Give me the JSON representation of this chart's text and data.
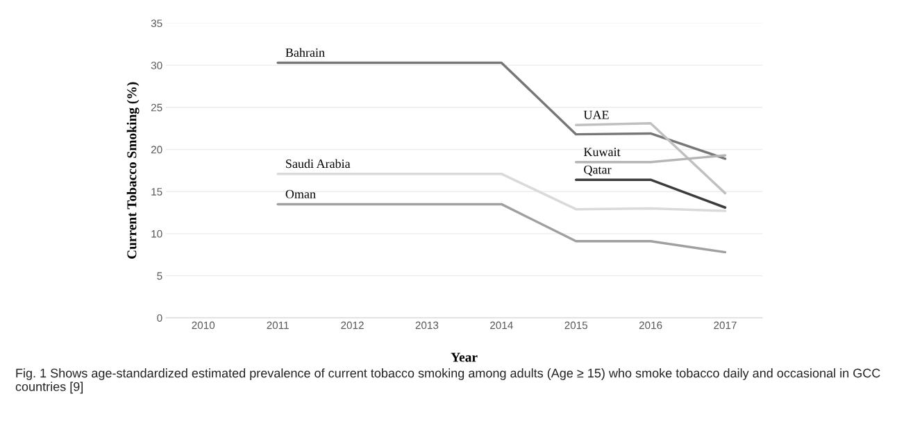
{
  "chart_data": {
    "type": "line",
    "categories": [
      "2010",
      "2011",
      "2012",
      "2013",
      "2014",
      "2015",
      "2016",
      "2017"
    ],
    "xlabel": "Year",
    "ylabel": "Current Tobacco Smoking (%)",
    "ylim": [
      0,
      35
    ],
    "yticks": [
      0,
      5,
      10,
      15,
      20,
      25,
      30,
      35
    ],
    "grid": "y",
    "legend": false,
    "series": [
      {
        "name": "Bahrain",
        "color": "#777777",
        "values": [
          null,
          30.3,
          30.3,
          30.3,
          30.3,
          21.8,
          21.9,
          18.9
        ]
      },
      {
        "name": "Saudi Arabia",
        "color": "#dadada",
        "values": [
          null,
          17.1,
          17.1,
          17.1,
          17.1,
          12.9,
          13.0,
          12.7
        ]
      },
      {
        "name": "Oman",
        "color": "#a0a0a0",
        "values": [
          null,
          13.5,
          13.5,
          13.5,
          13.5,
          9.1,
          9.1,
          7.8
        ]
      },
      {
        "name": "UAE",
        "color": "#c0c0c0",
        "values": [
          null,
          null,
          null,
          null,
          null,
          22.9,
          23.1,
          14.8
        ]
      },
      {
        "name": "Kuwait",
        "color": "#b5b5b5",
        "values": [
          null,
          null,
          null,
          null,
          null,
          18.5,
          18.5,
          19.3
        ]
      },
      {
        "name": "Qatar",
        "color": "#3c3c3c",
        "values": [
          null,
          null,
          null,
          null,
          null,
          16.4,
          16.4,
          13.1
        ]
      }
    ],
    "annotations": [
      "Fig. 1 Shows age-standardized estimated prevalence of current tobacco smoking among adults (Age ≥ 15) who smoke tobacco daily and occasional in GCC countries [9]"
    ]
  }
}
